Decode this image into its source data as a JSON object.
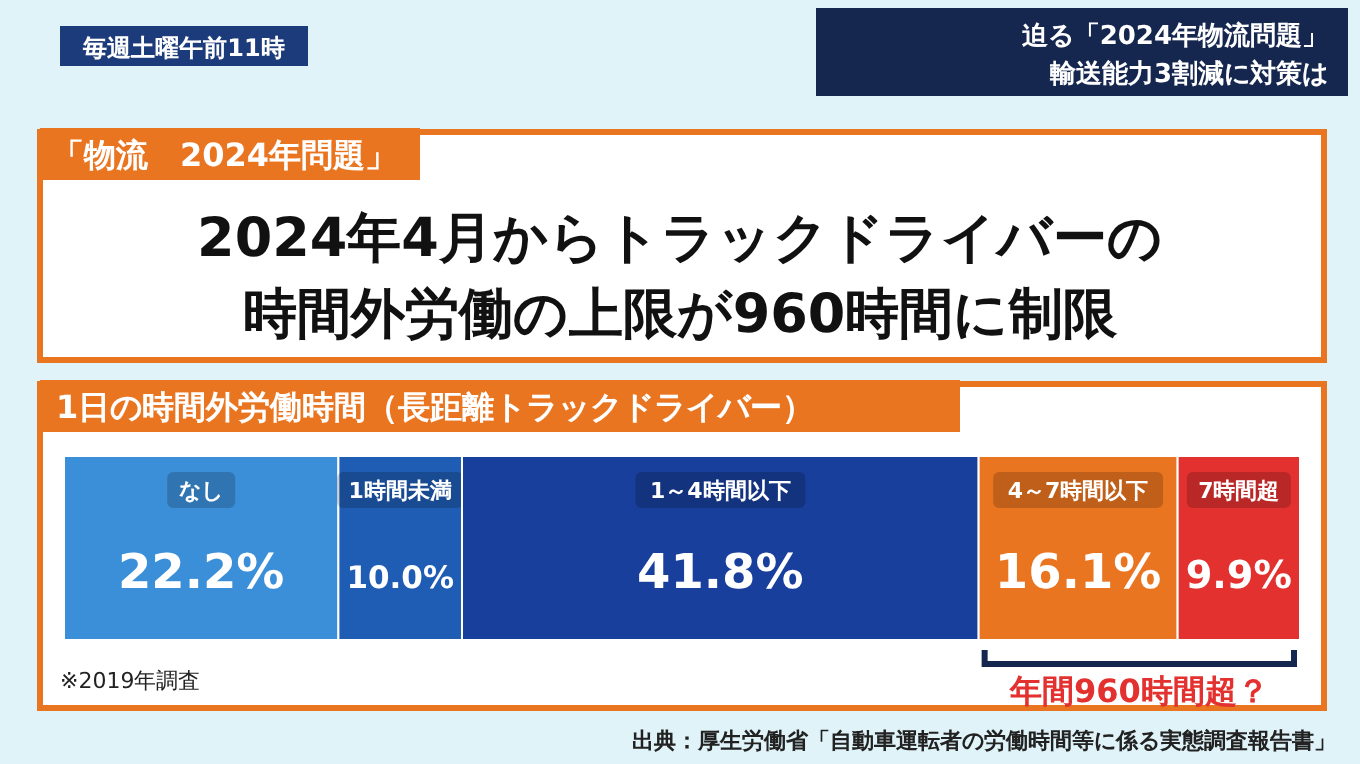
{
  "chart_data": {
    "type": "bar",
    "title": "1日の時間外労働時間（長距離トラックドライバー）",
    "categories": [
      null
    ],
    "stacked": true,
    "orientation": "horizontal",
    "series": [
      {
        "name": "なし",
        "color": "#3b8fd8",
        "values": [
          22.2
        ],
        "value_labels": [
          "22.2%"
        ]
      },
      {
        "name": "1時間未満",
        "color": "#1f5cb3",
        "values": [
          10.0
        ],
        "value_labels": [
          "10.0%"
        ]
      },
      {
        "name": "1～4時間以下",
        "color": "#193f9c",
        "values": [
          41.8
        ],
        "value_labels": [
          "41.8%"
        ]
      },
      {
        "name": "4～7時間以下",
        "color": "#ea7520",
        "values": [
          16.1
        ],
        "value_labels": [
          "16.1%"
        ]
      },
      {
        "name": "7時間超",
        "color": "#e2312f",
        "values": [
          9.9
        ],
        "value_labels": [
          "9.9%"
        ]
      }
    ],
    "annotations": [
      "毎週土曜午前11時",
      "迫る「2024年物流問題」",
      "輸送能力3割減に対策は",
      "「物流　2024年問題」",
      "2024年4月からトラックドライバーの",
      "時間外労働の上限が960時間に制限",
      "※2019年調査",
      "出典：厚生労働省「自動車運転者の労働時間等に係る実態調査報告書」",
      "年間960時間超？"
    ]
  }
}
